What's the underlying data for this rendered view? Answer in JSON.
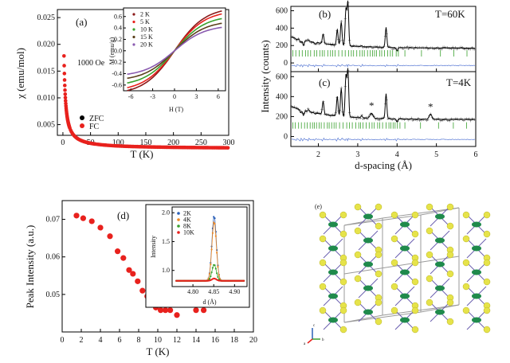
{
  "chart_data": [
    {
      "type": "scatter",
      "panel_label": "(a)",
      "xlabel": "T (K)",
      "ylabel": "χ (emu/mol)",
      "xlim": [
        -10,
        300
      ],
      "ylim": [
        0.003,
        0.0265
      ],
      "xticks": [
        "0",
        "50",
        "100",
        "150",
        "200",
        "250",
        "300"
      ],
      "yticks": [
        "0.005",
        "0.010",
        "0.015",
        "0.020",
        "0.025"
      ],
      "annotation": "1000 Oe",
      "legend": [
        {
          "name": "ZFC",
          "color": "#000000"
        },
        {
          "name": "FC",
          "color": "#e8211d"
        }
      ],
      "series": [
        {
          "name": "FC",
          "color": "#e8211d",
          "curve": "chi = 0.0005 + 0.052/(T+1.0), T = 2..300 K"
        }
      ],
      "inset": {
        "type": "line",
        "xlabel": "H (T)",
        "ylabel": "M (emu/g)",
        "xlim": [
          -7,
          7
        ],
        "ylim": [
          -0.7,
          0.75
        ],
        "xticks": [
          "-6",
          "-3",
          "0",
          "3",
          "6"
        ],
        "yticks": [
          "-0.6",
          "-0.4",
          "-0.2",
          "0.0",
          "0.2",
          "0.4",
          "0.6"
        ],
        "series": [
          {
            "name": "2 K",
            "color": "#8b1a1a",
            "slope_at_6T": 0.68
          },
          {
            "name": "5 K",
            "color": "#e8211d",
            "slope_at_6T": 0.63
          },
          {
            "name": "10 K",
            "color": "#3aa12e",
            "slope_at_6T": 0.55
          },
          {
            "name": "15 K",
            "color": "#5a3f1a",
            "slope_at_6T": 0.47
          },
          {
            "name": "20 K",
            "color": "#8a5bb0",
            "slope_at_6T": 0.4
          }
        ]
      }
    },
    {
      "type": "line",
      "panel_label": "(b)",
      "title": "T=60K",
      "ylabel": "Intensity (counts)",
      "xlim": [
        1.3,
        6
      ],
      "ylim": [
        -100,
        650
      ],
      "yticks": [
        "0",
        "200",
        "400",
        "600"
      ],
      "peaks_d": [
        1.45,
        1.55,
        1.62,
        1.75,
        1.92,
        2.12,
        2.48,
        2.58,
        2.7,
        2.75,
        3.1,
        3.72,
        4.0
      ],
      "peaks_h": [
        140,
        120,
        90,
        160,
        130,
        260,
        330,
        420,
        570,
        650,
        160,
        380,
        110
      ]
    },
    {
      "type": "line",
      "panel_label": "(c)",
      "title": "T=4K",
      "xlabel": "d-spacing (Å)",
      "xlim": [
        1.3,
        6
      ],
      "ylim": [
        -100,
        650
      ],
      "xticks": [
        "2",
        "3",
        "4",
        "5",
        "6"
      ],
      "yticks": [
        "0",
        "200",
        "400",
        "600"
      ],
      "peaks_d": [
        1.45,
        1.55,
        1.62,
        1.75,
        1.92,
        2.12,
        2.48,
        2.58,
        2.7,
        2.75,
        3.1,
        3.72,
        4.0
      ],
      "peaks_h": [
        150,
        120,
        100,
        170,
        140,
        280,
        350,
        430,
        560,
        620,
        170,
        400,
        120
      ],
      "magnetic_peaks": [
        {
          "d": 3.35,
          "label": "*"
        },
        {
          "d": 4.85,
          "label": "*"
        }
      ]
    },
    {
      "type": "scatter",
      "panel_label": "(d)",
      "xlabel": "T (K)",
      "ylabel": "Peak Intensity (a.u.)",
      "xlim": [
        0,
        20
      ],
      "ylim": [
        0.04,
        0.075
      ],
      "xticks": [
        "0",
        "2",
        "4",
        "6",
        "8",
        "10",
        "12",
        "14",
        "16",
        "18",
        "20"
      ],
      "yticks": [
        "0.05",
        "0.06",
        "0.07"
      ],
      "x": [
        1.5,
        2.2,
        3.1,
        4.0,
        5.0,
        5.8,
        6.4,
        7.0,
        7.4,
        7.9,
        8.4,
        8.9,
        9.4,
        9.8,
        10.3,
        10.8,
        11.3,
        12.0,
        14.0,
        14.8
      ],
      "y": [
        0.071,
        0.0703,
        0.0695,
        0.0678,
        0.0655,
        0.0615,
        0.0597,
        0.0565,
        0.0555,
        0.0535,
        0.051,
        0.0495,
        0.0475,
        0.0465,
        0.0458,
        0.0458,
        0.0458,
        0.0445,
        0.0458,
        0.0458
      ],
      "color": "#e8211d",
      "inset": {
        "type": "line",
        "xlabel": "d (Å)",
        "ylabel": "Intensity",
        "xlim": [
          4.75,
          4.93
        ],
        "ylim": [
          0.72,
          2.1
        ],
        "xticks": [
          "4.80",
          "4.85",
          "4.90"
        ],
        "yticks": [
          "1.0",
          "1.5",
          "2.0"
        ],
        "series": [
          {
            "name": "2K",
            "color": "#2b5fb7",
            "peak": 1.95
          },
          {
            "name": "4K",
            "color": "#f08a24",
            "peak": 1.85
          },
          {
            "name": "8K",
            "color": "#3aa12e",
            "peak": 1.1
          },
          {
            "name": "10K",
            "color": "#e8211d",
            "peak": 0.86
          }
        ]
      }
    }
  ],
  "panel_e": {
    "label": "(e)",
    "axis_labels": [
      "c",
      "a",
      "b"
    ]
  }
}
